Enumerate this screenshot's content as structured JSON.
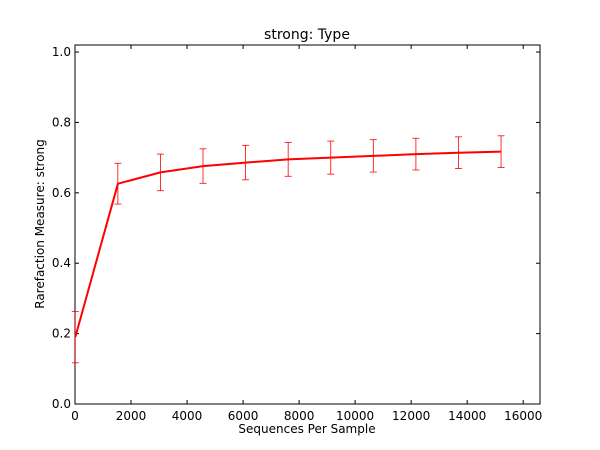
{
  "chart_data": {
    "type": "line",
    "title": "strong: Type",
    "xlabel": "Sequences Per Sample",
    "ylabel": "Rarefaction Measure: strong",
    "xlim": [
      0,
      16600
    ],
    "ylim": [
      0.0,
      1.02
    ],
    "xticks": [
      0,
      2000,
      4000,
      6000,
      8000,
      10000,
      12000,
      14000,
      16000
    ],
    "xtick_labels": [
      "0",
      "2000",
      "4000",
      "6000",
      "8000",
      "10000",
      "12000",
      "14000",
      "16000"
    ],
    "yticks": [
      0.0,
      0.2,
      0.4,
      0.6,
      0.8,
      1.0
    ],
    "ytick_labels": [
      "0.0",
      "0.2",
      "0.4",
      "0.6",
      "0.8",
      "1.0"
    ],
    "grid": false,
    "series": [
      {
        "color": "#ff0000",
        "x": [
          10,
          1530,
          3050,
          4570,
          6090,
          7610,
          9130,
          10650,
          12170,
          13690,
          15210
        ],
        "y": [
          0.19,
          0.626,
          0.658,
          0.676,
          0.686,
          0.695,
          0.7,
          0.705,
          0.71,
          0.714,
          0.717
        ],
        "err": [
          0.073,
          0.058,
          0.052,
          0.049,
          0.049,
          0.048,
          0.047,
          0.046,
          0.045,
          0.045,
          0.045
        ]
      }
    ]
  }
}
